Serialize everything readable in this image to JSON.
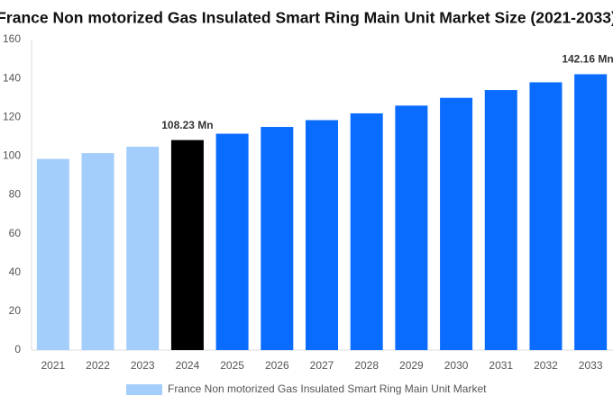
{
  "chart_data": {
    "type": "bar",
    "title": "France Non motorized Gas Insulated Smart Ring Main Unit Market Size (2021-2033)",
    "categories": [
      "2021",
      "2022",
      "2023",
      "2024",
      "2025",
      "2026",
      "2027",
      "2028",
      "2029",
      "2030",
      "2031",
      "2032",
      "2033"
    ],
    "series": [
      {
        "name": "France Non motorized Gas Insulated Smart Ring Main Unit Market",
        "color": "#a3cdfb",
        "values": [
          98.5,
          101.5,
          104.8,
          108.23,
          111.5,
          115,
          118.5,
          122,
          126,
          130,
          134,
          138,
          142.16
        ],
        "value_labels": [
          null,
          null,
          null,
          "108.23 Mn",
          null,
          null,
          null,
          null,
          null,
          null,
          null,
          null,
          "142.16 Mn"
        ],
        "colors": [
          "#a3cdfb",
          "#a3cdfb",
          "#a3cdfb",
          "#000000",
          "#0a6cff",
          "#0a6cff",
          "#0a6cff",
          "#0a6cff",
          "#0a6cff",
          "#0a6cff",
          "#0a6cff",
          "#0a6cff",
          "#0a6cff"
        ]
      }
    ],
    "ylim": [
      0,
      160
    ],
    "yticks": [
      0,
      20,
      40,
      60,
      80,
      100,
      120,
      140,
      160
    ],
    "grid": false
  }
}
